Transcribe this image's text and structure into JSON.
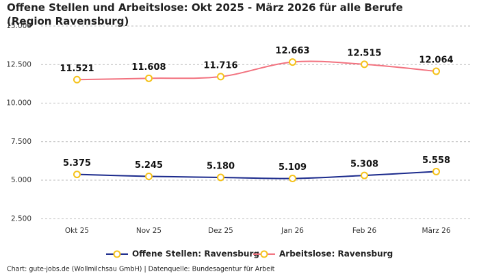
{
  "chart_data": {
    "type": "line",
    "title": "Offene Stellen und Arbeitslose: Okt 2025 - März 2026 für alle Berufe (Region Ravensburg)",
    "categories": [
      "Okt 25",
      "Nov 25",
      "Dez 25",
      "Jan 26",
      "Feb 26",
      "März 26"
    ],
    "series": [
      {
        "name": "Offene Stellen: Ravensburg",
        "color": "#1b2a8c",
        "values": [
          5375,
          5245,
          5180,
          5109,
          5308,
          5558
        ],
        "value_labels": [
          "5.375",
          "5.245",
          "5.180",
          "5.109",
          "5.308",
          "5.558"
        ]
      },
      {
        "name": "Arbeitslose: Ravensburg",
        "color": "#f2727f",
        "values": [
          11521,
          11608,
          11716,
          12663,
          12515,
          12064
        ],
        "value_labels": [
          "11.521",
          "11.608",
          "11.716",
          "12.663",
          "12.515",
          "12.064"
        ]
      }
    ],
    "marker_color": "#f5c21b",
    "ylim": [
      1800,
      15000
    ],
    "yticks": [
      {
        "value": 2500,
        "label": "2.500"
      },
      {
        "value": 5000,
        "label": "5.000"
      },
      {
        "value": 7500,
        "label": "7.500"
      },
      {
        "value": 10000,
        "label": "10.000"
      },
      {
        "value": 12500,
        "label": "12.500"
      },
      {
        "value": 15000,
        "label": "15.000"
      }
    ],
    "grid": true,
    "legend": "bottom",
    "footer": "Chart: gute-jobs.de (Wollmilchsau GmbH) | Datenquelle: Bundesagentur für Arbeit"
  }
}
